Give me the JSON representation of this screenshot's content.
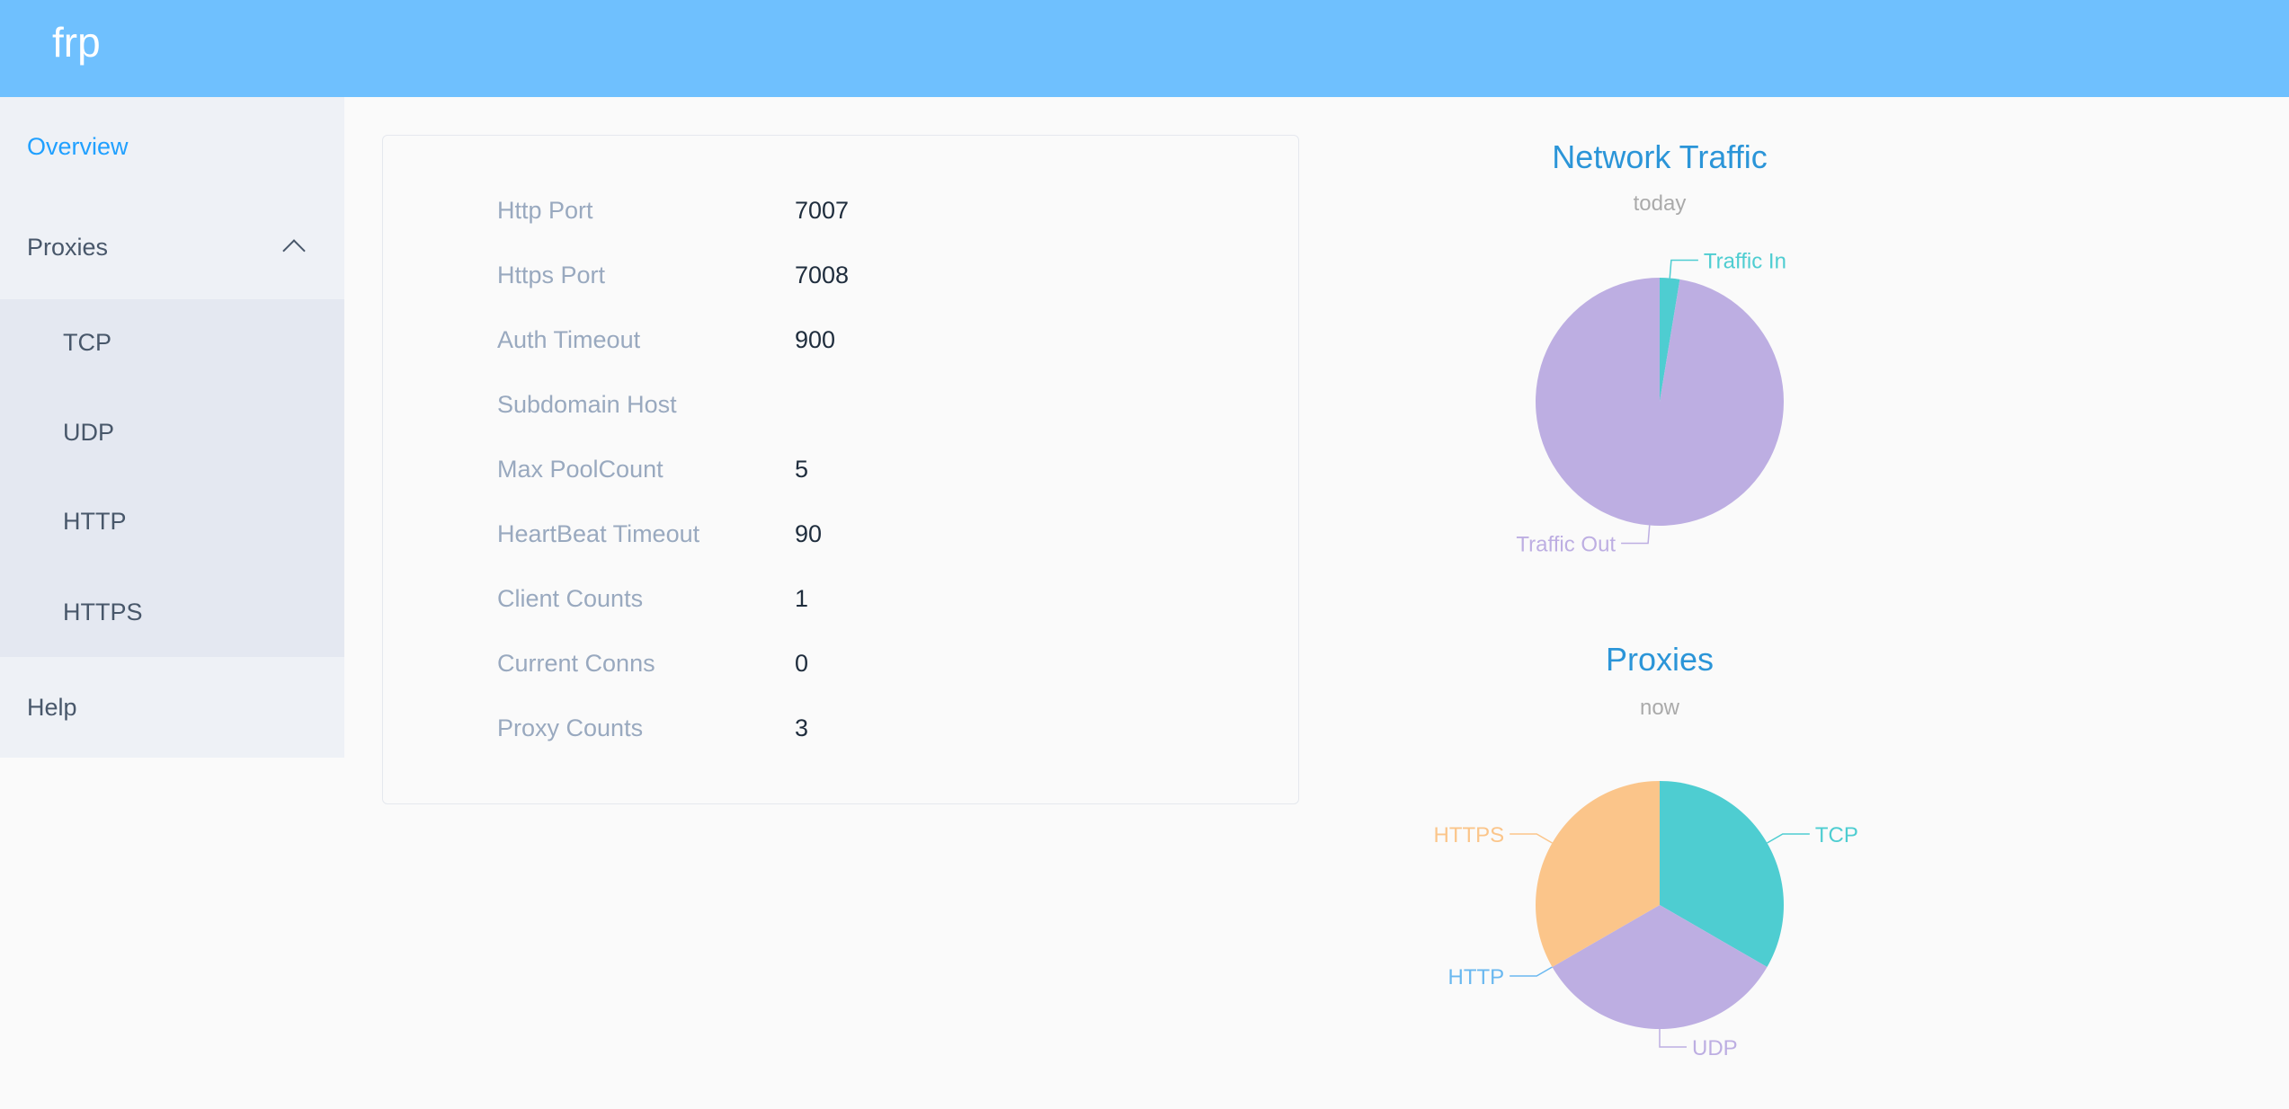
{
  "header": {
    "logo": "frp"
  },
  "sidebar": {
    "overview": "Overview",
    "proxies": "Proxies",
    "sub": [
      "TCP",
      "UDP",
      "HTTP",
      "HTTPS"
    ],
    "help": "Help"
  },
  "info": [
    {
      "label": "Http Port",
      "value": "7007"
    },
    {
      "label": "Https Port",
      "value": "7008"
    },
    {
      "label": "Auth Timeout",
      "value": "900"
    },
    {
      "label": "Subdomain Host",
      "value": ""
    },
    {
      "label": "Max PoolCount",
      "value": "5"
    },
    {
      "label": "HeartBeat Timeout",
      "value": "90"
    },
    {
      "label": "Client Counts",
      "value": "1"
    },
    {
      "label": "Current Conns",
      "value": "0"
    },
    {
      "label": "Proxy Counts",
      "value": "3"
    }
  ],
  "colors": {
    "title": "#2b95d8",
    "subtitle": "#aaaaaa"
  },
  "chart_data": [
    {
      "type": "pie",
      "title": "Network Traffic",
      "subtitle": "today",
      "categories": [
        "Traffic In",
        "Traffic Out"
      ],
      "values": [
        2.6,
        97.4
      ],
      "unit": "percent (approx.)",
      "colors": [
        "#4ecdd1",
        "#bdaee2"
      ]
    },
    {
      "type": "pie",
      "title": "Proxies",
      "subtitle": "now",
      "categories": [
        "TCP",
        "UDP",
        "HTTP",
        "HTTPS"
      ],
      "values": [
        1,
        1,
        0,
        1
      ],
      "colors": [
        "#4ecdd1",
        "#bdaee2",
        "#6ab8f0",
        "#fbc58a"
      ]
    }
  ]
}
